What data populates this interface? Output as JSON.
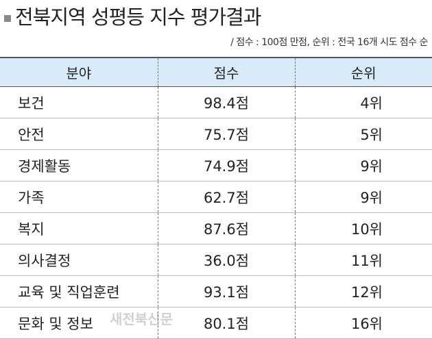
{
  "header": {
    "title": "전북지역 성평등 지수 평가결과",
    "note": "/ 점수 : 100점 만점, 순위 : 전국 16개 시도 점수 순"
  },
  "table": {
    "columns": [
      "분야",
      "점수",
      "순위"
    ],
    "rows": [
      [
        "보건",
        "98.4점",
        "4위"
      ],
      [
        "안전",
        "75.7점",
        "5위"
      ],
      [
        "경제활동",
        "74.9점",
        "9위"
      ],
      [
        "가족",
        "62.7점",
        "9위"
      ],
      [
        "복지",
        "87.6점",
        "10위"
      ],
      [
        "의사결정",
        "36.0점",
        "11위"
      ],
      [
        "교육 및 직업훈련",
        "93.1점",
        "12위"
      ],
      [
        "문화 및 정보",
        "80.1점",
        "16위"
      ]
    ]
  },
  "watermark": "새전북신문"
}
